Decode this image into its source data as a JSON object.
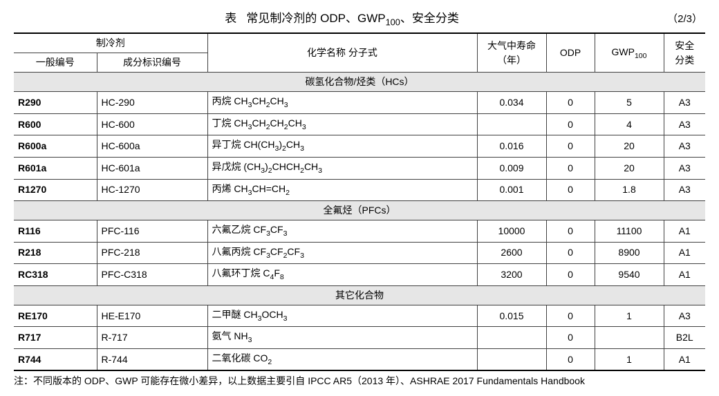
{
  "title_prefix": "表",
  "title_main": "常见制冷剂的 ODP、GWP",
  "title_sub": "100",
  "title_suffix": "、安全分类",
  "page_indicator": "（2/3）",
  "headers": {
    "refrigerant": "制冷剂",
    "code": "一般编号",
    "component": "成分标识编号",
    "chem": "化学名称 分子式",
    "life_line1": "大气中寿命",
    "life_line2": "（年）",
    "odp": "ODP",
    "gwp_prefix": "GWP",
    "gwp_sub": "100",
    "safety_line1": "安全",
    "safety_line2": "分类"
  },
  "sections": [
    {
      "label": "碳氢化合物/烃类（HCs）",
      "rows": [
        {
          "code": "R290",
          "component": "HC-290",
          "chem_html": "丙烷  CH<sub>3</sub>CH<sub>2</sub>CH<sub>3</sub>",
          "life": "0.034",
          "odp": "0",
          "gwp": "5",
          "safety": "A3"
        },
        {
          "code": "R600",
          "component": "HC-600",
          "chem_html": "丁烷  CH<sub>3</sub>CH<sub>2</sub>CH<sub>2</sub>CH<sub>3</sub>",
          "life": "",
          "odp": "0",
          "gwp": "4",
          "safety": "A3"
        },
        {
          "code": "R600a",
          "component": "HC-600a",
          "chem_html": "异丁烷  CH(CH<sub>3</sub>)<sub>2</sub>CH<sub>3</sub>",
          "life": "0.016",
          "odp": "0",
          "gwp": "20",
          "safety": "A3"
        },
        {
          "code": "R601a",
          "component": "HC-601a",
          "chem_html": "异戊烷  (CH<sub>3</sub>)<sub>2</sub>CHCH<sub>2</sub>CH<sub>3</sub>",
          "life": "0.009",
          "odp": "0",
          "gwp": "20",
          "safety": "A3"
        },
        {
          "code": "R1270",
          "component": "HC-1270",
          "chem_html": "丙烯  CH<sub>3</sub>CH=CH<sub>2</sub>",
          "life": "0.001",
          "odp": "0",
          "gwp": "1.8",
          "safety": "A3"
        }
      ]
    },
    {
      "label": "全氟烃（PFCs）",
      "rows": [
        {
          "code": "R116",
          "component": "PFC-116",
          "chem_html": "六氟乙烷  CF<sub>3</sub>CF<sub>3</sub>",
          "life": "10000",
          "odp": "0",
          "gwp": "11100",
          "safety": "A1"
        },
        {
          "code": "R218",
          "component": "PFC-218",
          "chem_html": "八氟丙烷  CF<sub>3</sub>CF<sub>2</sub>CF<sub>3</sub>",
          "life": "2600",
          "odp": "0",
          "gwp": "8900",
          "safety": "A1"
        },
        {
          "code": "RC318",
          "component": "PFC-C318",
          "chem_html": "八氟环丁烷  C<sub>4</sub>F<sub>8</sub>",
          "life": "3200",
          "odp": "0",
          "gwp": "9540",
          "safety": "A1"
        }
      ]
    },
    {
      "label": "其它化合物",
      "rows": [
        {
          "code": "RE170",
          "component": "HE-E170",
          "chem_html": "二甲醚  CH<sub>3</sub>OCH<sub>3</sub>",
          "life": "0.015",
          "odp": "0",
          "gwp": "1",
          "safety": "A3"
        },
        {
          "code": "R717",
          "component": "R-717",
          "chem_html": "氨气  NH<sub>3</sub>",
          "life": "",
          "odp": "0",
          "gwp": "",
          "safety": "B2L"
        },
        {
          "code": "R744",
          "component": "R-744",
          "chem_html": "二氧化碳  CO<sub>2</sub>",
          "life": "",
          "odp": "0",
          "gwp": "1",
          "safety": "A1"
        }
      ]
    }
  ],
  "footnote": "注：不同版本的 ODP、GWP 可能存在微小差异，以上数据主要引自 IPCC AR5（2013 年）、ASHRAE 2017 Fundamentals Handbook"
}
